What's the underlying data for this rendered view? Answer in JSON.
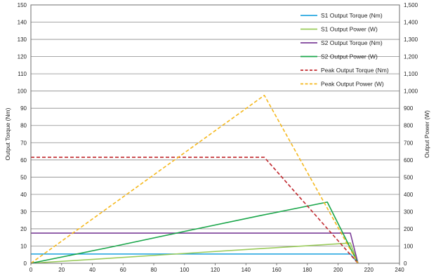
{
  "chart_data": {
    "type": "line",
    "xlim": [
      0,
      240
    ],
    "x_ticks": [
      0,
      20,
      40,
      60,
      80,
      100,
      120,
      140,
      160,
      180,
      200,
      220,
      240
    ],
    "y_left": {
      "label": "Output Torque (Nm)",
      "lim": [
        0,
        150
      ],
      "ticks": [
        0,
        10,
        20,
        30,
        40,
        50,
        60,
        70,
        80,
        90,
        100,
        110,
        120,
        130,
        140,
        150
      ],
      "tick_labels": [
        "0",
        "10",
        "20",
        "30",
        "40",
        "50",
        "60",
        "70",
        "80",
        "90",
        "100",
        "110",
        "120",
        "130",
        "140",
        "150"
      ]
    },
    "y_right": {
      "label": "Output Power (W)",
      "lim": [
        0,
        1500
      ],
      "ticks": [
        0,
        100,
        200,
        300,
        400,
        500,
        600,
        700,
        800,
        900,
        1000,
        1100,
        1200,
        1300,
        1400,
        1500
      ],
      "tick_labels": [
        "0",
        "100",
        "200",
        "300",
        "400",
        "500",
        "600",
        "700",
        "800",
        "900",
        "1,000",
        "1,100",
        "1,200",
        "1,300",
        "1,400",
        "1,500"
      ]
    },
    "grid": "horizontal",
    "legend_position": "top-right",
    "series": [
      {
        "name": "S1 Output Torque (Nm)",
        "axis": "left",
        "color": "#29a8e0",
        "dash": "solid",
        "x": [
          0,
          208,
          213
        ],
        "y": [
          5.4,
          5.4,
          0
        ]
      },
      {
        "name": "S1 Output Power (W)",
        "axis": "right",
        "color": "#9acb5b",
        "dash": "solid",
        "x": [
          0,
          50,
          100,
          150,
          200,
          208,
          213
        ],
        "y": [
          0,
          28,
          57,
          85,
          113,
          118,
          0
        ]
      },
      {
        "name": "S2 Output Torque (Nm)",
        "axis": "left",
        "color": "#7b3f98",
        "dash": "solid",
        "x": [
          0,
          208,
          213
        ],
        "y": [
          17.5,
          17.5,
          0
        ]
      },
      {
        "name": "S2 Output Power (W)",
        "axis": "right",
        "color": "#1aa64a",
        "dash": "solid",
        "x": [
          0,
          50,
          100,
          150,
          193,
          213
        ],
        "y": [
          0,
          90,
          185,
          278,
          355,
          0
        ]
      },
      {
        "name": "Peak Output Torque (Nm)",
        "axis": "left",
        "color": "#c0272d",
        "dash": "dashed",
        "x": [
          0,
          152,
          213
        ],
        "y": [
          61.5,
          61.5,
          0
        ]
      },
      {
        "name": "Peak Output Power (W)",
        "axis": "right",
        "color": "#f5b81c",
        "dash": "dashed",
        "x": [
          0,
          152,
          213
        ],
        "y": [
          0,
          975,
          0
        ]
      }
    ]
  }
}
